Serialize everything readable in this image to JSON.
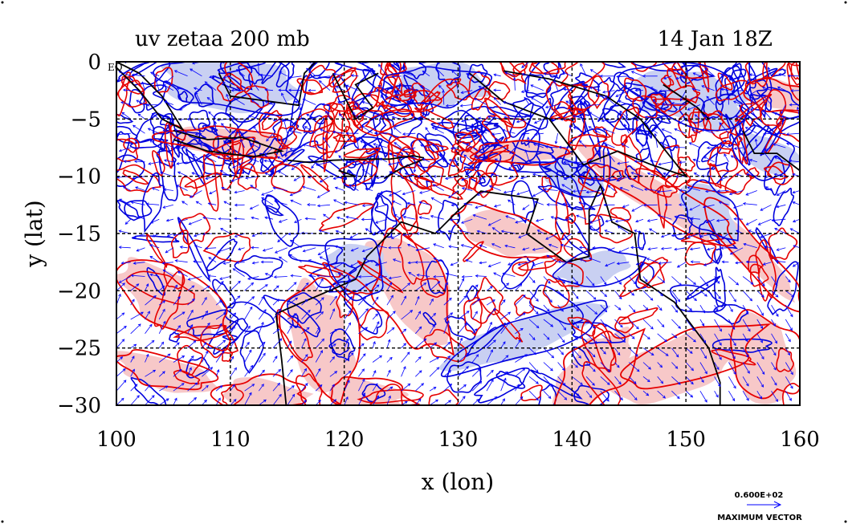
{
  "title_left": "uv zetaa 200 mb",
  "title_right": "14 Jan 18Z",
  "corner_label": "EQ",
  "x_axis": {
    "label": "x (lon)",
    "ticks": [
      100,
      110,
      120,
      130,
      140,
      150,
      160
    ],
    "range": [
      100,
      160
    ]
  },
  "y_axis": {
    "label": "y (lat)",
    "ticks": [
      0,
      -5,
      -10,
      -15,
      -20,
      -25,
      -30
    ],
    "tick_labels": [
      "0",
      "−5",
      "−10",
      "−15",
      "−20",
      "−25",
      "−30"
    ],
    "range": [
      -30,
      0
    ]
  },
  "grid": true,
  "legend": {
    "value": "0.600E+02",
    "text": "MAXIMUM VECTOR"
  },
  "colors": {
    "positive_contour": "#e60000",
    "positive_fill": "#f7c8c8",
    "negative_contour": "#0000dd",
    "negative_fill": "#c9d0f2",
    "vector": "#0000ff",
    "coastline": "#000000"
  }
}
